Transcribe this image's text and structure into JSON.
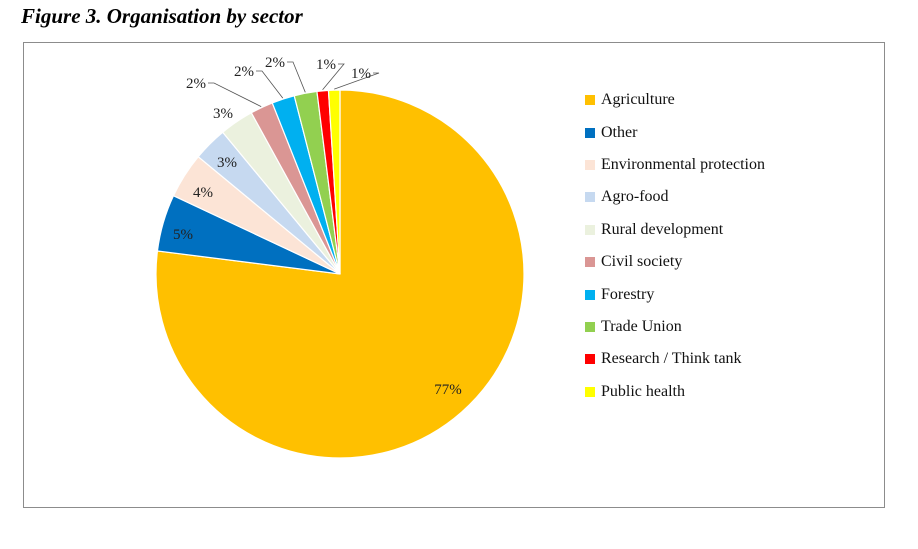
{
  "figure": {
    "title": "Figure 3. Organisation by sector"
  },
  "chart_data": {
    "type": "pie",
    "title": "",
    "slices": [
      {
        "label": "Agriculture",
        "value": 77,
        "display": "77%",
        "color": "#FFC000"
      },
      {
        "label": "Other",
        "value": 5,
        "display": "5%",
        "color": "#0070C0"
      },
      {
        "label": "Environmental protection",
        "value": 4,
        "display": "4%",
        "color": "#FCE4D6"
      },
      {
        "label": "Agro-food",
        "value": 3,
        "display": "3%",
        "color": "#C6D9F0"
      },
      {
        "label": "Rural development",
        "value": 3,
        "display": "3%",
        "color": "#EBF1DE"
      },
      {
        "label": "Civil society",
        "value": 2,
        "display": "2%",
        "color": "#DA9694"
      },
      {
        "label": "Forestry",
        "value": 2,
        "display": "2%",
        "color": "#00B0F0"
      },
      {
        "label": "Trade Union",
        "value": 2,
        "display": "2%",
        "color": "#92D050"
      },
      {
        "label": "Research / Think tank",
        "value": 1,
        "display": "1%",
        "color": "#FF0000"
      },
      {
        "label": "Public health",
        "value": 1,
        "display": "1%",
        "color": "#FFFF00"
      }
    ],
    "legend_position": "right"
  }
}
